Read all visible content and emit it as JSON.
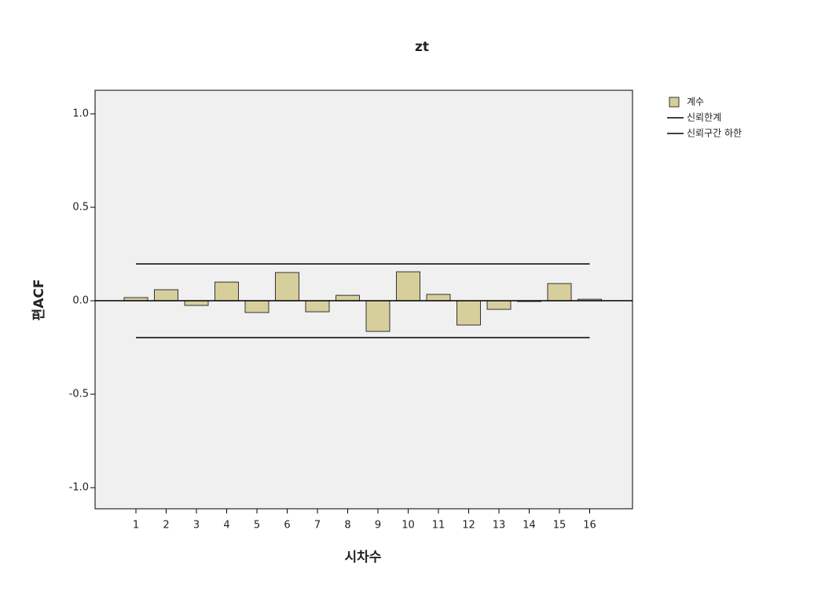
{
  "chart_data": {
    "type": "bar",
    "title": "zt",
    "y_label": "편ACF",
    "x_label": "시차수",
    "categories": [
      "1",
      "2",
      "3",
      "4",
      "5",
      "6",
      "7",
      "8",
      "9",
      "10",
      "11",
      "12",
      "13",
      "14",
      "15",
      "16"
    ],
    "series": [
      {
        "name": "계수",
        "type": "bar",
        "color": "#d6cf9c",
        "values": [
          0.017,
          0.059,
          -0.025,
          0.1,
          -0.063,
          0.151,
          -0.059,
          0.029,
          -0.164,
          0.155,
          0.034,
          -0.13,
          -0.046,
          -0.004,
          0.092,
          0.008
        ]
      },
      {
        "name": "신뢰한계",
        "type": "line",
        "color": "#000000",
        "values": [
          0.197,
          0.197,
          0.197,
          0.197,
          0.197,
          0.197,
          0.197,
          0.197,
          0.197,
          0.197,
          0.197,
          0.197,
          0.197,
          0.197,
          0.197,
          0.197
        ]
      },
      {
        "name": "신뢰구간 하한",
        "type": "line",
        "color": "#000000",
        "values": [
          -0.197,
          -0.197,
          -0.197,
          -0.197,
          -0.197,
          -0.197,
          -0.197,
          -0.197,
          -0.197,
          -0.197,
          -0.197,
          -0.197,
          -0.197,
          -0.197,
          -0.197,
          -0.197
        ]
      }
    ],
    "ylim": [
      -1.113,
      1.126
    ],
    "yticks": [
      {
        "value": 1,
        "label": "1.0"
      },
      {
        "value": 0.5,
        "label": "0.5"
      },
      {
        "value": 0,
        "label": "0.0"
      },
      {
        "value": -0.5,
        "label": "-0.5"
      },
      {
        "value": -1,
        "label": "-1.0"
      }
    ],
    "legend": "right"
  }
}
